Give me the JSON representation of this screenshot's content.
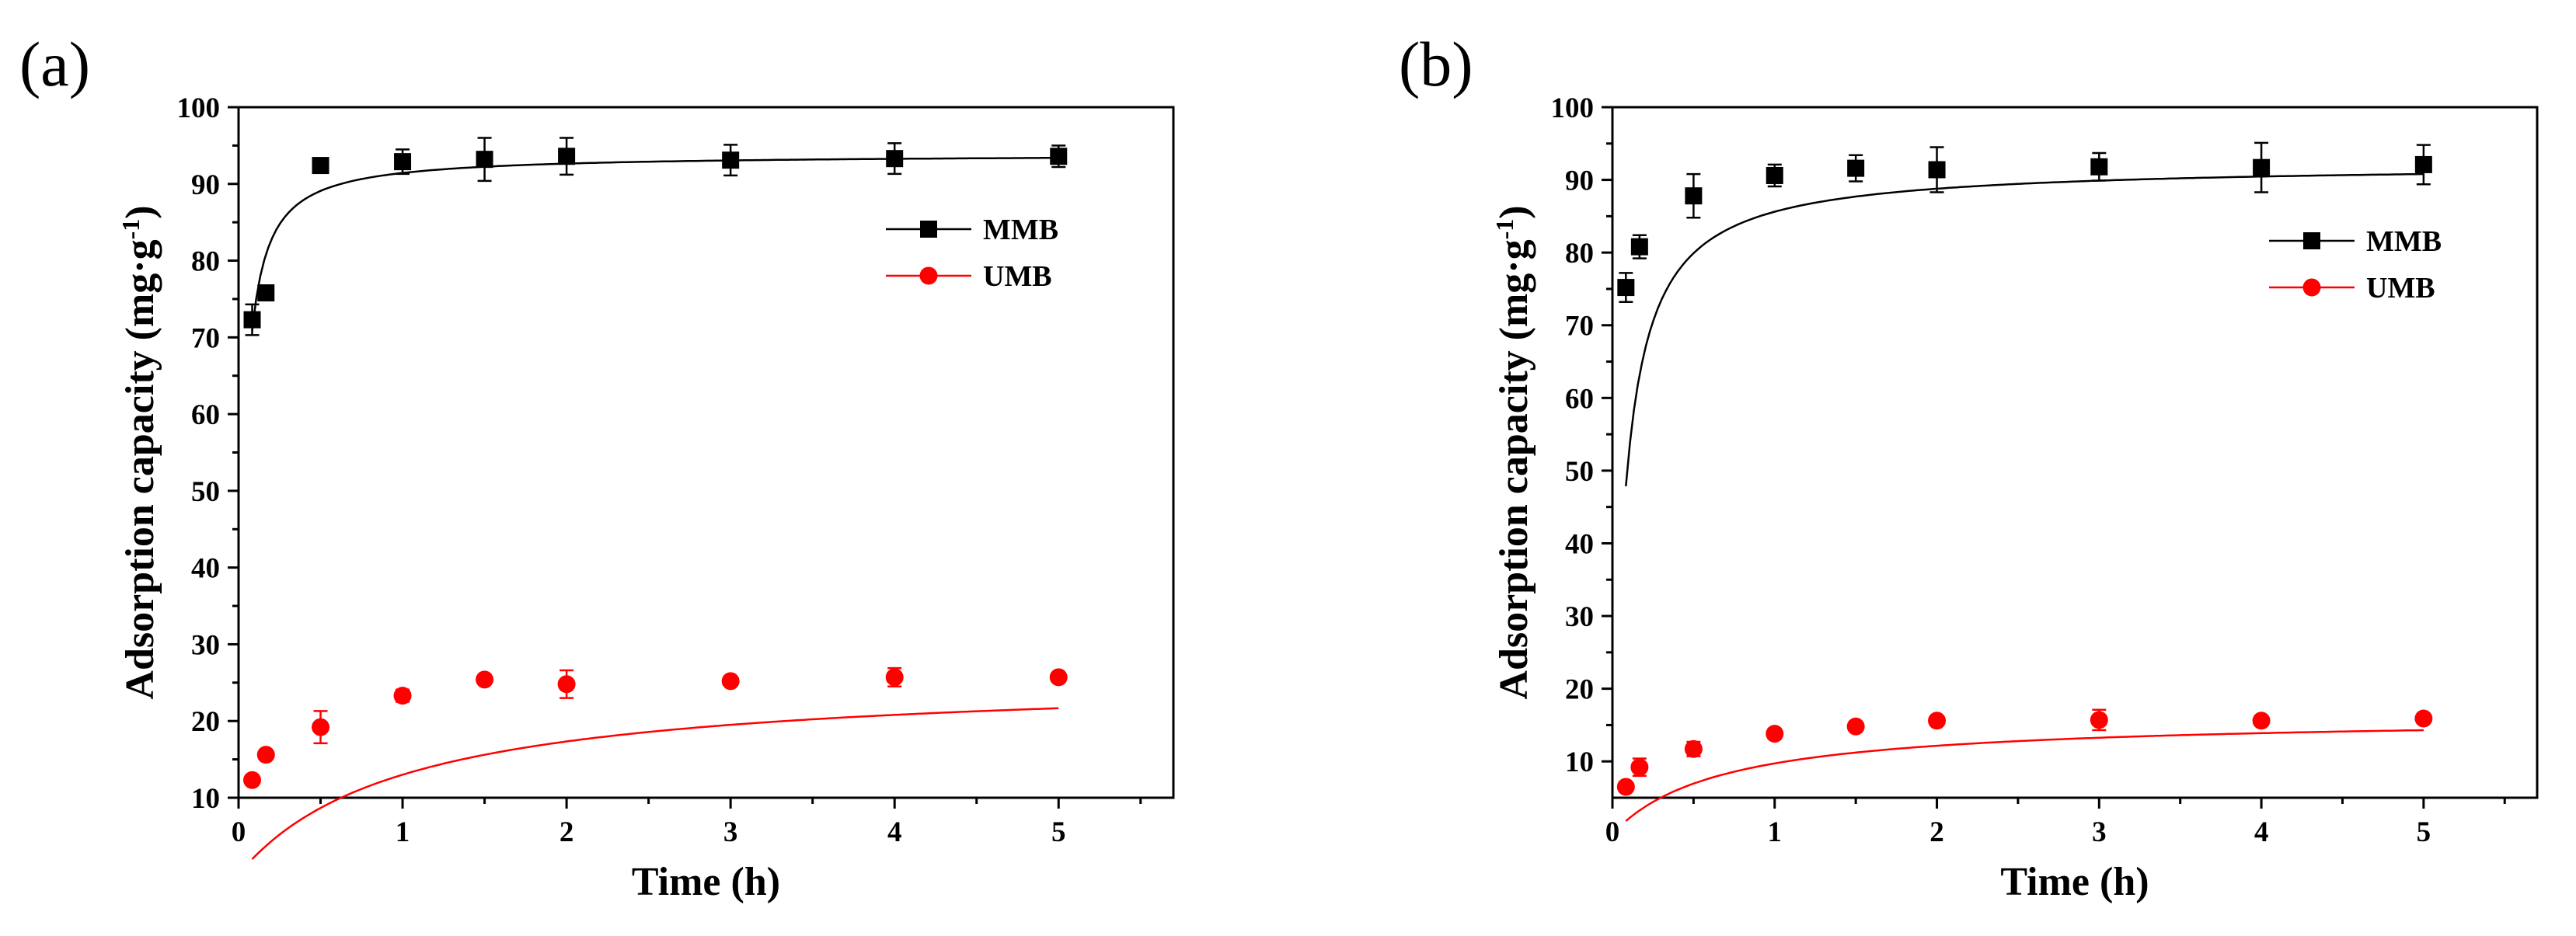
{
  "chart_data": [
    {
      "panel_label": "(a)",
      "type": "scatter",
      "xlabel": "Time (h)",
      "ylabel": "Adsorption capacity (mg·g",
      "ylabel_sup": "-1",
      "ylabel_close": ")",
      "xlim": [
        0,
        5.7
      ],
      "ylim": [
        10,
        100
      ],
      "xticks": [
        0,
        1,
        2,
        3,
        4,
        5
      ],
      "xtick_labels": [
        "0",
        "1",
        "2",
        "3",
        "4",
        "5"
      ],
      "yticks": [
        10,
        20,
        30,
        40,
        50,
        60,
        70,
        80,
        90,
        100
      ],
      "ytick_labels": [
        "10",
        "20",
        "30",
        "40",
        "50",
        "60",
        "70",
        "80",
        "90",
        "100"
      ],
      "legend_position": "top-right",
      "series": [
        {
          "name": "MMB",
          "marker": "square",
          "color": "#000000",
          "x": [
            0.083,
            0.167,
            0.5,
            1,
            1.5,
            2,
            3,
            4,
            5
          ],
          "y": [
            72.3,
            75.8,
            92.4,
            92.9,
            93.2,
            93.6,
            93.1,
            93.3,
            93.6
          ],
          "err": [
            2.0,
            0.5,
            0.5,
            1.6,
            2.8,
            2.4,
            2.0,
            2.0,
            1.4
          ],
          "fit": {
            "qe": 93.9,
            "k": 37,
            "x0": 0.083
          }
        },
        {
          "name": "UMB",
          "marker": "circle",
          "color": "#ff0000",
          "x": [
            0.083,
            0.167,
            0.5,
            1,
            1.5,
            2,
            3,
            4,
            5
          ],
          "y": [
            12.3,
            15.6,
            19.2,
            23.3,
            25.4,
            24.8,
            25.2,
            25.7,
            25.7
          ],
          "err": [
            0.5,
            0.5,
            2.1,
            0.8,
            0.6,
            1.8,
            0.6,
            1.2,
            0.5
          ],
          "fit": {
            "qe": 26.0,
            "k": 1.0,
            "x0": 0.083
          }
        }
      ]
    },
    {
      "panel_label": "(b)",
      "type": "scatter",
      "xlabel": "Time (h)",
      "ylabel": "Adsorption capacity (mg·g",
      "ylabel_sup": "-1",
      "ylabel_close": ")",
      "xlim": [
        0,
        5.7
      ],
      "ylim": [
        5,
        100
      ],
      "xticks": [
        0,
        1,
        2,
        3,
        4,
        5
      ],
      "xtick_labels": [
        "0",
        "1",
        "2",
        "3",
        "4",
        "5"
      ],
      "yticks": [
        10,
        20,
        30,
        40,
        50,
        60,
        70,
        80,
        90,
        100
      ],
      "ytick_labels": [
        "10",
        "20",
        "30",
        "40",
        "50",
        "60",
        "70",
        "80",
        "90",
        "100"
      ],
      "legend_position": "top-right",
      "series": [
        {
          "name": "MMB",
          "marker": "square",
          "color": "#000000",
          "x": [
            0.083,
            0.167,
            0.5,
            1,
            1.5,
            2,
            3,
            4,
            5
          ],
          "y": [
            75.2,
            80.8,
            87.8,
            90.6,
            91.6,
            91.4,
            91.8,
            91.7,
            92.1
          ],
          "err": [
            2.0,
            1.6,
            3.0,
            1.5,
            1.8,
            3.1,
            1.9,
            3.4,
            2.7
          ],
          "fit": {
            "qe": 92.2,
            "k": 13,
            "x0": 0.083
          }
        },
        {
          "name": "UMB",
          "marker": "circle",
          "color": "#ff0000",
          "x": [
            0.083,
            0.167,
            0.5,
            1,
            1.5,
            2,
            3,
            4,
            5
          ],
          "y": [
            6.5,
            9.2,
            11.7,
            13.8,
            14.8,
            15.6,
            15.7,
            15.6,
            15.9
          ],
          "err": [
            0.6,
            1.2,
            1.0,
            0.7,
            0.6,
            0.6,
            1.4,
            0.5,
            0.5
          ],
          "fit": {
            "qe": 16.2,
            "k": 1.5,
            "x0": 0.083
          }
        }
      ]
    }
  ]
}
